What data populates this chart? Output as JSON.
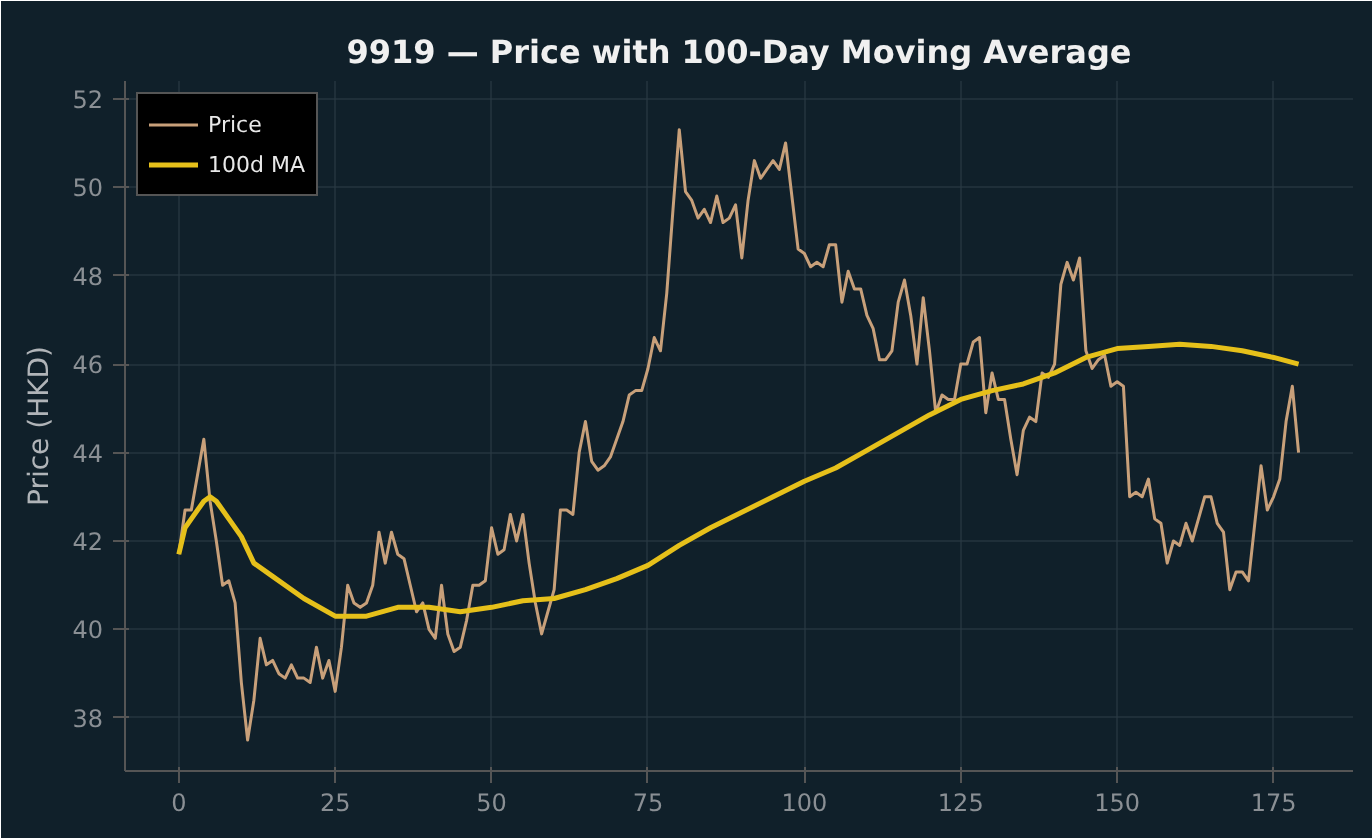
{
  "chart_data": {
    "type": "line",
    "title": "9919 — Price with 100-Day Moving Average",
    "ylabel": "Price (HKD)",
    "xlim": [
      -8.6,
      187.7
    ],
    "ylim": [
      36.8,
      52.4
    ],
    "xticks": [
      0,
      25,
      50,
      75,
      100,
      125,
      150,
      175
    ],
    "yticks": [
      38,
      40,
      42,
      44,
      46,
      48,
      50,
      52
    ],
    "grid": true,
    "legend": "top left",
    "series": [
      {
        "name": "Price",
        "color": "#c8a07a",
        "x": [
          0,
          1,
          2,
          3,
          4,
          5,
          6,
          7,
          8,
          9,
          10,
          11,
          12,
          13,
          14,
          15,
          16,
          17,
          18,
          19,
          20,
          21,
          22,
          23,
          24,
          25,
          26,
          27,
          28,
          29,
          30,
          31,
          32,
          33,
          34,
          35,
          36,
          37,
          38,
          39,
          40,
          41,
          42,
          43,
          44,
          45,
          46,
          47,
          48,
          49,
          50,
          51,
          52,
          53,
          54,
          55,
          56,
          57,
          58,
          59,
          60,
          61,
          62,
          63,
          64,
          65,
          66,
          67,
          68,
          69,
          70,
          71,
          72,
          73,
          74,
          75,
          76,
          77,
          78,
          79,
          80,
          81,
          82,
          83,
          84,
          85,
          86,
          87,
          88,
          89,
          90,
          91,
          92,
          93,
          94,
          95,
          96,
          97,
          98,
          99,
          100,
          101,
          102,
          103,
          104,
          105,
          106,
          107,
          108,
          109,
          110,
          111,
          112,
          113,
          114,
          115,
          116,
          117,
          118,
          119,
          120,
          121,
          122,
          123,
          124,
          125,
          126,
          127,
          128,
          129,
          130,
          131,
          132,
          133,
          134,
          135,
          136,
          137,
          138,
          139,
          140,
          141,
          142,
          143,
          144,
          145,
          146,
          147,
          148,
          149,
          150,
          151,
          152,
          153,
          154,
          155,
          156,
          157,
          158,
          159,
          160,
          161,
          162,
          163,
          164,
          165,
          166,
          167,
          168,
          169,
          170,
          171,
          172,
          173,
          174,
          175,
          176,
          177,
          178,
          179
        ],
        "values": [
          41.7,
          42.7,
          42.7,
          43.5,
          44.3,
          42.9,
          42.0,
          41.0,
          41.1,
          40.6,
          38.8,
          37.5,
          38.4,
          39.8,
          39.2,
          39.3,
          39.0,
          38.9,
          39.2,
          38.9,
          38.9,
          38.8,
          39.6,
          38.9,
          39.3,
          38.6,
          39.6,
          41.0,
          40.6,
          40.5,
          40.6,
          41.0,
          42.2,
          41.5,
          42.2,
          41.7,
          41.6,
          41.0,
          40.4,
          40.6,
          40.0,
          39.8,
          41.0,
          39.9,
          39.5,
          39.6,
          40.2,
          41.0,
          41.0,
          41.1,
          42.3,
          41.7,
          41.8,
          42.6,
          42.0,
          42.6,
          41.5,
          40.6,
          39.9,
          40.4,
          40.9,
          42.7,
          42.7,
          42.6,
          44.0,
          44.7,
          43.8,
          43.6,
          43.7,
          43.9,
          44.3,
          44.7,
          45.3,
          45.4,
          45.4,
          45.9,
          46.6,
          46.3,
          47.6,
          49.5,
          51.3,
          49.9,
          49.7,
          49.3,
          49.5,
          49.2,
          49.8,
          49.2,
          49.3,
          49.6,
          48.4,
          49.7,
          50.6,
          50.2,
          50.4,
          50.6,
          50.4,
          51.0,
          49.8,
          48.6,
          48.5,
          48.2,
          48.3,
          48.2,
          48.7,
          48.7,
          47.4,
          48.1,
          47.7,
          47.7,
          47.1,
          46.8,
          46.1,
          46.1,
          46.3,
          47.4,
          47.9,
          47.1,
          46.0,
          47.5,
          46.3,
          44.9,
          45.3,
          45.2,
          45.2,
          46.0,
          46.0,
          46.5,
          46.6,
          44.9,
          45.8,
          45.2,
          45.2,
          44.3,
          43.5,
          44.5,
          44.8,
          44.7,
          45.8,
          45.7,
          46.0,
          47.8,
          48.3,
          47.9,
          48.4,
          46.3,
          45.9,
          46.1,
          46.2,
          45.5,
          45.6,
          45.5,
          43.0,
          43.1,
          43.0,
          43.4,
          42.5,
          42.4,
          41.5,
          42.0,
          41.9,
          42.4,
          42.0,
          42.5,
          43.0,
          43.0,
          42.4,
          42.2,
          40.9,
          41.3,
          41.3,
          41.1,
          42.4,
          43.7,
          42.7,
          43.0,
          43.4,
          44.7,
          45.5,
          44.0
        ]
      },
      {
        "name": "100d MA",
        "color": "#e6c01a",
        "x": [
          0,
          1,
          2,
          4,
          5,
          6,
          8,
          10,
          12,
          15,
          20,
          25,
          30,
          35,
          40,
          45,
          50,
          55,
          60,
          65,
          70,
          75,
          80,
          85,
          90,
          95,
          100,
          105,
          110,
          115,
          120,
          125,
          130,
          135,
          140,
          145,
          150,
          155,
          160,
          165,
          170,
          175,
          179
        ],
        "values": [
          41.7,
          42.3,
          42.5,
          42.9,
          43.0,
          42.9,
          42.5,
          42.1,
          41.5,
          41.2,
          40.7,
          40.3,
          40.3,
          40.5,
          40.5,
          40.4,
          40.5,
          40.65,
          40.7,
          40.9,
          41.15,
          41.45,
          41.9,
          42.3,
          42.65,
          43.0,
          43.35,
          43.65,
          44.05,
          44.45,
          44.85,
          45.2,
          45.4,
          45.55,
          45.8,
          46.15,
          46.35,
          46.4,
          46.45,
          46.4,
          46.3,
          46.15,
          46.0
        ]
      }
    ]
  }
}
